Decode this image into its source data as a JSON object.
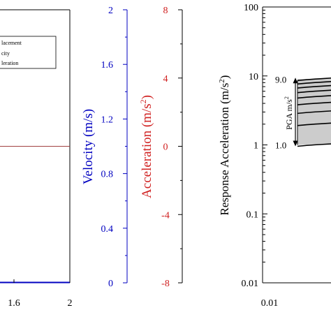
{
  "chart_data": [
    {
      "type": "line",
      "x_ticks": [
        "1.6",
        "2"
      ],
      "series": [
        {
          "name": "Displacement",
          "axis": "displacement",
          "x": [
            1.6,
            2.0
          ],
          "y": [
            0.98,
            0.98
          ],
          "color": "#000000"
        },
        {
          "name": "Velocity",
          "axis": "velocity",
          "x": [
            1.6,
            2.0
          ],
          "y": [
            0.0,
            0.0
          ],
          "color": "#0000c0"
        },
        {
          "name": "Acceleration",
          "axis": "acceleration",
          "x": [
            1.6,
            2.0
          ],
          "y": [
            0.0,
            0.0
          ],
          "color": "#a04040"
        }
      ],
      "legend_visible": [
        "lacement",
        "city",
        "leration"
      ],
      "velocity_axis": {
        "label": "Velocity (m/s)",
        "ticks": [
          "0",
          "0.4",
          "0.8",
          "1.2",
          "1.6",
          "2"
        ],
        "range": [
          0,
          2
        ],
        "color": "#0000c0"
      },
      "acceleration_axis": {
        "label_prefix": "Acceleration (m/s",
        "label_sup": "2",
        "label_suffix": ")",
        "ticks": [
          "-8",
          "-4",
          "0",
          "4",
          "8"
        ],
        "range": [
          -8,
          8
        ],
        "color": "#d02020"
      }
    },
    {
      "type": "line",
      "y_scale": "log",
      "ylabel_prefix": "Response Acceleration (m/s",
      "ylabel_sup": "2",
      "ylabel_suffix": ")",
      "y_ticks": [
        "100",
        "10",
        "1",
        "0.1",
        "0.01"
      ],
      "y_range": [
        0.01,
        100
      ],
      "x_ticks": [
        "0.01"
      ],
      "annotation": {
        "top": "9.0",
        "bottom": "1.0",
        "label": "PGA m/s",
        "label_sup": "2"
      },
      "pga_levels": [
        1.0,
        2.0,
        3.0,
        4.0,
        5.0,
        6.0,
        7.0,
        8.0,
        9.0
      ]
    }
  ]
}
